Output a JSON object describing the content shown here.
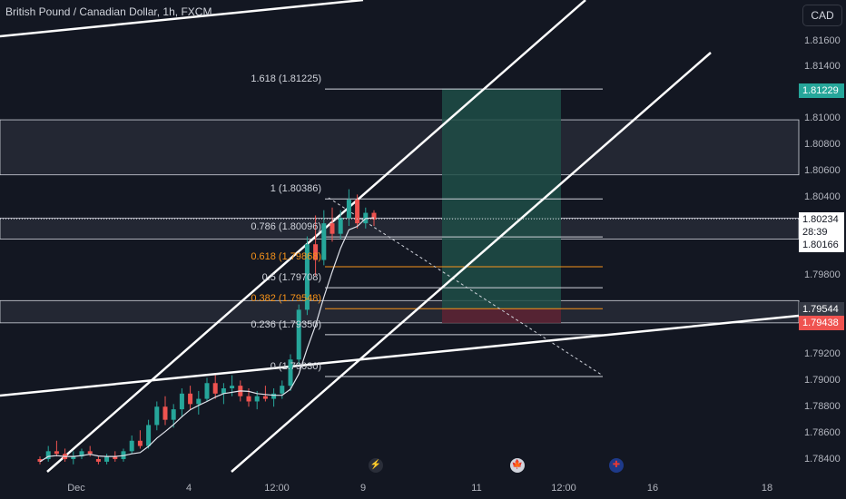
{
  "header": {
    "symbol_title": "British Pound / Canadian Dollar, 1h, FXCM"
  },
  "currency_button": "CAD",
  "colors": {
    "background": "#131722",
    "grid_text": "#b2b5be",
    "up": "#26a69a",
    "down": "#ef5350",
    "fib_orange": "#f7931a",
    "fib_white": "#d1d4dc",
    "target_zone": "#1e4d46",
    "stop_zone": "#5b2333",
    "price_tag_dark": "#363a45"
  },
  "price_axis": {
    "ticks": [
      "1.81600",
      "1.81400",
      "1.81000",
      "1.80800",
      "1.80600",
      "1.80400",
      "1.79800",
      "1.79200",
      "1.79000",
      "1.78800",
      "1.78600",
      "1.78400"
    ],
    "tags": [
      {
        "text": "1.81229",
        "kind": "target"
      },
      {
        "text": "1.80234",
        "kind": "last"
      },
      {
        "text": "28:39",
        "kind": "countdown"
      },
      {
        "text": "1.80166",
        "kind": "level"
      },
      {
        "text": "1.79544",
        "kind": "level-dark"
      },
      {
        "text": "1.79438",
        "kind": "stop"
      }
    ]
  },
  "time_axis": {
    "ticks": [
      "Dec",
      "4",
      "12:00",
      "9",
      "11",
      "12:00",
      "16",
      "18"
    ]
  },
  "fibonacci": [
    {
      "label": "1.618 (1.81225)",
      "price": 1.81225,
      "color": "white"
    },
    {
      "label": "1 (1.80386)",
      "price": 1.80386,
      "color": "white"
    },
    {
      "label": "0.786 (1.80096)",
      "price": 1.80096,
      "color": "white"
    },
    {
      "label": "0.618 (1.79868)",
      "price": 1.79868,
      "color": "orange"
    },
    {
      "label": "0.5 (1.79708)",
      "price": 1.79708,
      "color": "white"
    },
    {
      "label": "0.382 (1.79548)",
      "price": 1.79548,
      "color": "orange"
    },
    {
      "label": "0.236 (1.79350)",
      "price": 1.7935,
      "color": "white"
    },
    {
      "label": "0 (1.79030)",
      "price": 1.7903,
      "color": "white"
    }
  ],
  "zones": [
    {
      "name": "resistance-zone",
      "top": 1.8099,
      "bottom": 1.8057
    },
    {
      "name": "current-zone",
      "top": 1.8024,
      "bottom": 1.8008
    },
    {
      "name": "support-zone",
      "top": 1.7961,
      "bottom": 1.7944
    }
  ],
  "position": {
    "entry": 1.7955,
    "target": 1.81229,
    "stop": 1.79438
  },
  "event_icons": [
    {
      "name": "lightning-icon",
      "glyph": "⚡"
    },
    {
      "name": "canada-flag-icon",
      "glyph": "🍁"
    },
    {
      "name": "uk-flag-icon",
      "glyph": "✚"
    }
  ],
  "chart_data": {
    "type": "candlestick",
    "title": "British Pound / Canadian Dollar, 1h, FXCM",
    "ylim": [
      1.7836,
      1.8177
    ],
    "last_price": 1.80234,
    "candles": [
      {
        "o": 1.784,
        "h": 1.7842,
        "l": 1.7836,
        "c": 1.7838
      },
      {
        "o": 1.784,
        "h": 1.785,
        "l": 1.7838,
        "c": 1.7846
      },
      {
        "o": 1.7846,
        "h": 1.7854,
        "l": 1.7842,
        "c": 1.7844
      },
      {
        "o": 1.7844,
        "h": 1.7848,
        "l": 1.7838,
        "c": 1.784
      },
      {
        "o": 1.784,
        "h": 1.7846,
        "l": 1.7836,
        "c": 1.7842
      },
      {
        "o": 1.7842,
        "h": 1.7848,
        "l": 1.784,
        "c": 1.7846
      },
      {
        "o": 1.7846,
        "h": 1.785,
        "l": 1.7842,
        "c": 1.7844
      },
      {
        "o": 1.784,
        "h": 1.7842,
        "l": 1.7836,
        "c": 1.7838
      },
      {
        "o": 1.7838,
        "h": 1.7844,
        "l": 1.7836,
        "c": 1.7842
      },
      {
        "o": 1.7842,
        "h": 1.7846,
        "l": 1.7838,
        "c": 1.784
      },
      {
        "o": 1.784,
        "h": 1.7848,
        "l": 1.7838,
        "c": 1.7846
      },
      {
        "o": 1.7846,
        "h": 1.7858,
        "l": 1.7844,
        "c": 1.7854
      },
      {
        "o": 1.7854,
        "h": 1.7862,
        "l": 1.7848,
        "c": 1.785
      },
      {
        "o": 1.785,
        "h": 1.787,
        "l": 1.7848,
        "c": 1.7866
      },
      {
        "o": 1.7866,
        "h": 1.7884,
        "l": 1.7862,
        "c": 1.788
      },
      {
        "o": 1.788,
        "h": 1.7888,
        "l": 1.7866,
        "c": 1.787
      },
      {
        "o": 1.787,
        "h": 1.7882,
        "l": 1.7864,
        "c": 1.7878
      },
      {
        "o": 1.7878,
        "h": 1.7894,
        "l": 1.7872,
        "c": 1.789
      },
      {
        "o": 1.789,
        "h": 1.7896,
        "l": 1.7878,
        "c": 1.7882
      },
      {
        "o": 1.7882,
        "h": 1.7892,
        "l": 1.7874,
        "c": 1.7886
      },
      {
        "o": 1.7886,
        "h": 1.7902,
        "l": 1.7884,
        "c": 1.7898
      },
      {
        "o": 1.7898,
        "h": 1.7904,
        "l": 1.7886,
        "c": 1.789
      },
      {
        "o": 1.789,
        "h": 1.7898,
        "l": 1.7882,
        "c": 1.7894
      },
      {
        "o": 1.7894,
        "h": 1.7904,
        "l": 1.7888,
        "c": 1.7896
      },
      {
        "o": 1.7896,
        "h": 1.79,
        "l": 1.7884,
        "c": 1.7888
      },
      {
        "o": 1.7888,
        "h": 1.7894,
        "l": 1.788,
        "c": 1.7884
      },
      {
        "o": 1.7884,
        "h": 1.7892,
        "l": 1.7878,
        "c": 1.7888
      },
      {
        "o": 1.7888,
        "h": 1.7896,
        "l": 1.7884,
        "c": 1.7886
      },
      {
        "o": 1.7886,
        "h": 1.7894,
        "l": 1.788,
        "c": 1.789
      },
      {
        "o": 1.789,
        "h": 1.79,
        "l": 1.7886,
        "c": 1.7896
      },
      {
        "o": 1.7896,
        "h": 1.792,
        "l": 1.7892,
        "c": 1.7916
      },
      {
        "o": 1.7916,
        "h": 1.7958,
        "l": 1.7912,
        "c": 1.7954
      },
      {
        "o": 1.7954,
        "h": 1.801,
        "l": 1.795,
        "c": 1.8004
      },
      {
        "o": 1.8004,
        "h": 1.8026,
        "l": 1.798,
        "c": 1.7992
      },
      {
        "o": 1.7992,
        "h": 1.803,
        "l": 1.7988,
        "c": 1.802
      },
      {
        "o": 1.802,
        "h": 1.8032,
        "l": 1.8006,
        "c": 1.8012
      },
      {
        "o": 1.8012,
        "h": 1.803,
        "l": 1.8008,
        "c": 1.8024
      },
      {
        "o": 1.8024,
        "h": 1.8046,
        "l": 1.8018,
        "c": 1.8038
      },
      {
        "o": 1.8038,
        "h": 1.8042,
        "l": 1.8016,
        "c": 1.802
      },
      {
        "o": 1.802,
        "h": 1.8032,
        "l": 1.8016,
        "c": 1.8028
      },
      {
        "o": 1.8028,
        "h": 1.803,
        "l": 1.8018,
        "c": 1.8023
      }
    ]
  }
}
